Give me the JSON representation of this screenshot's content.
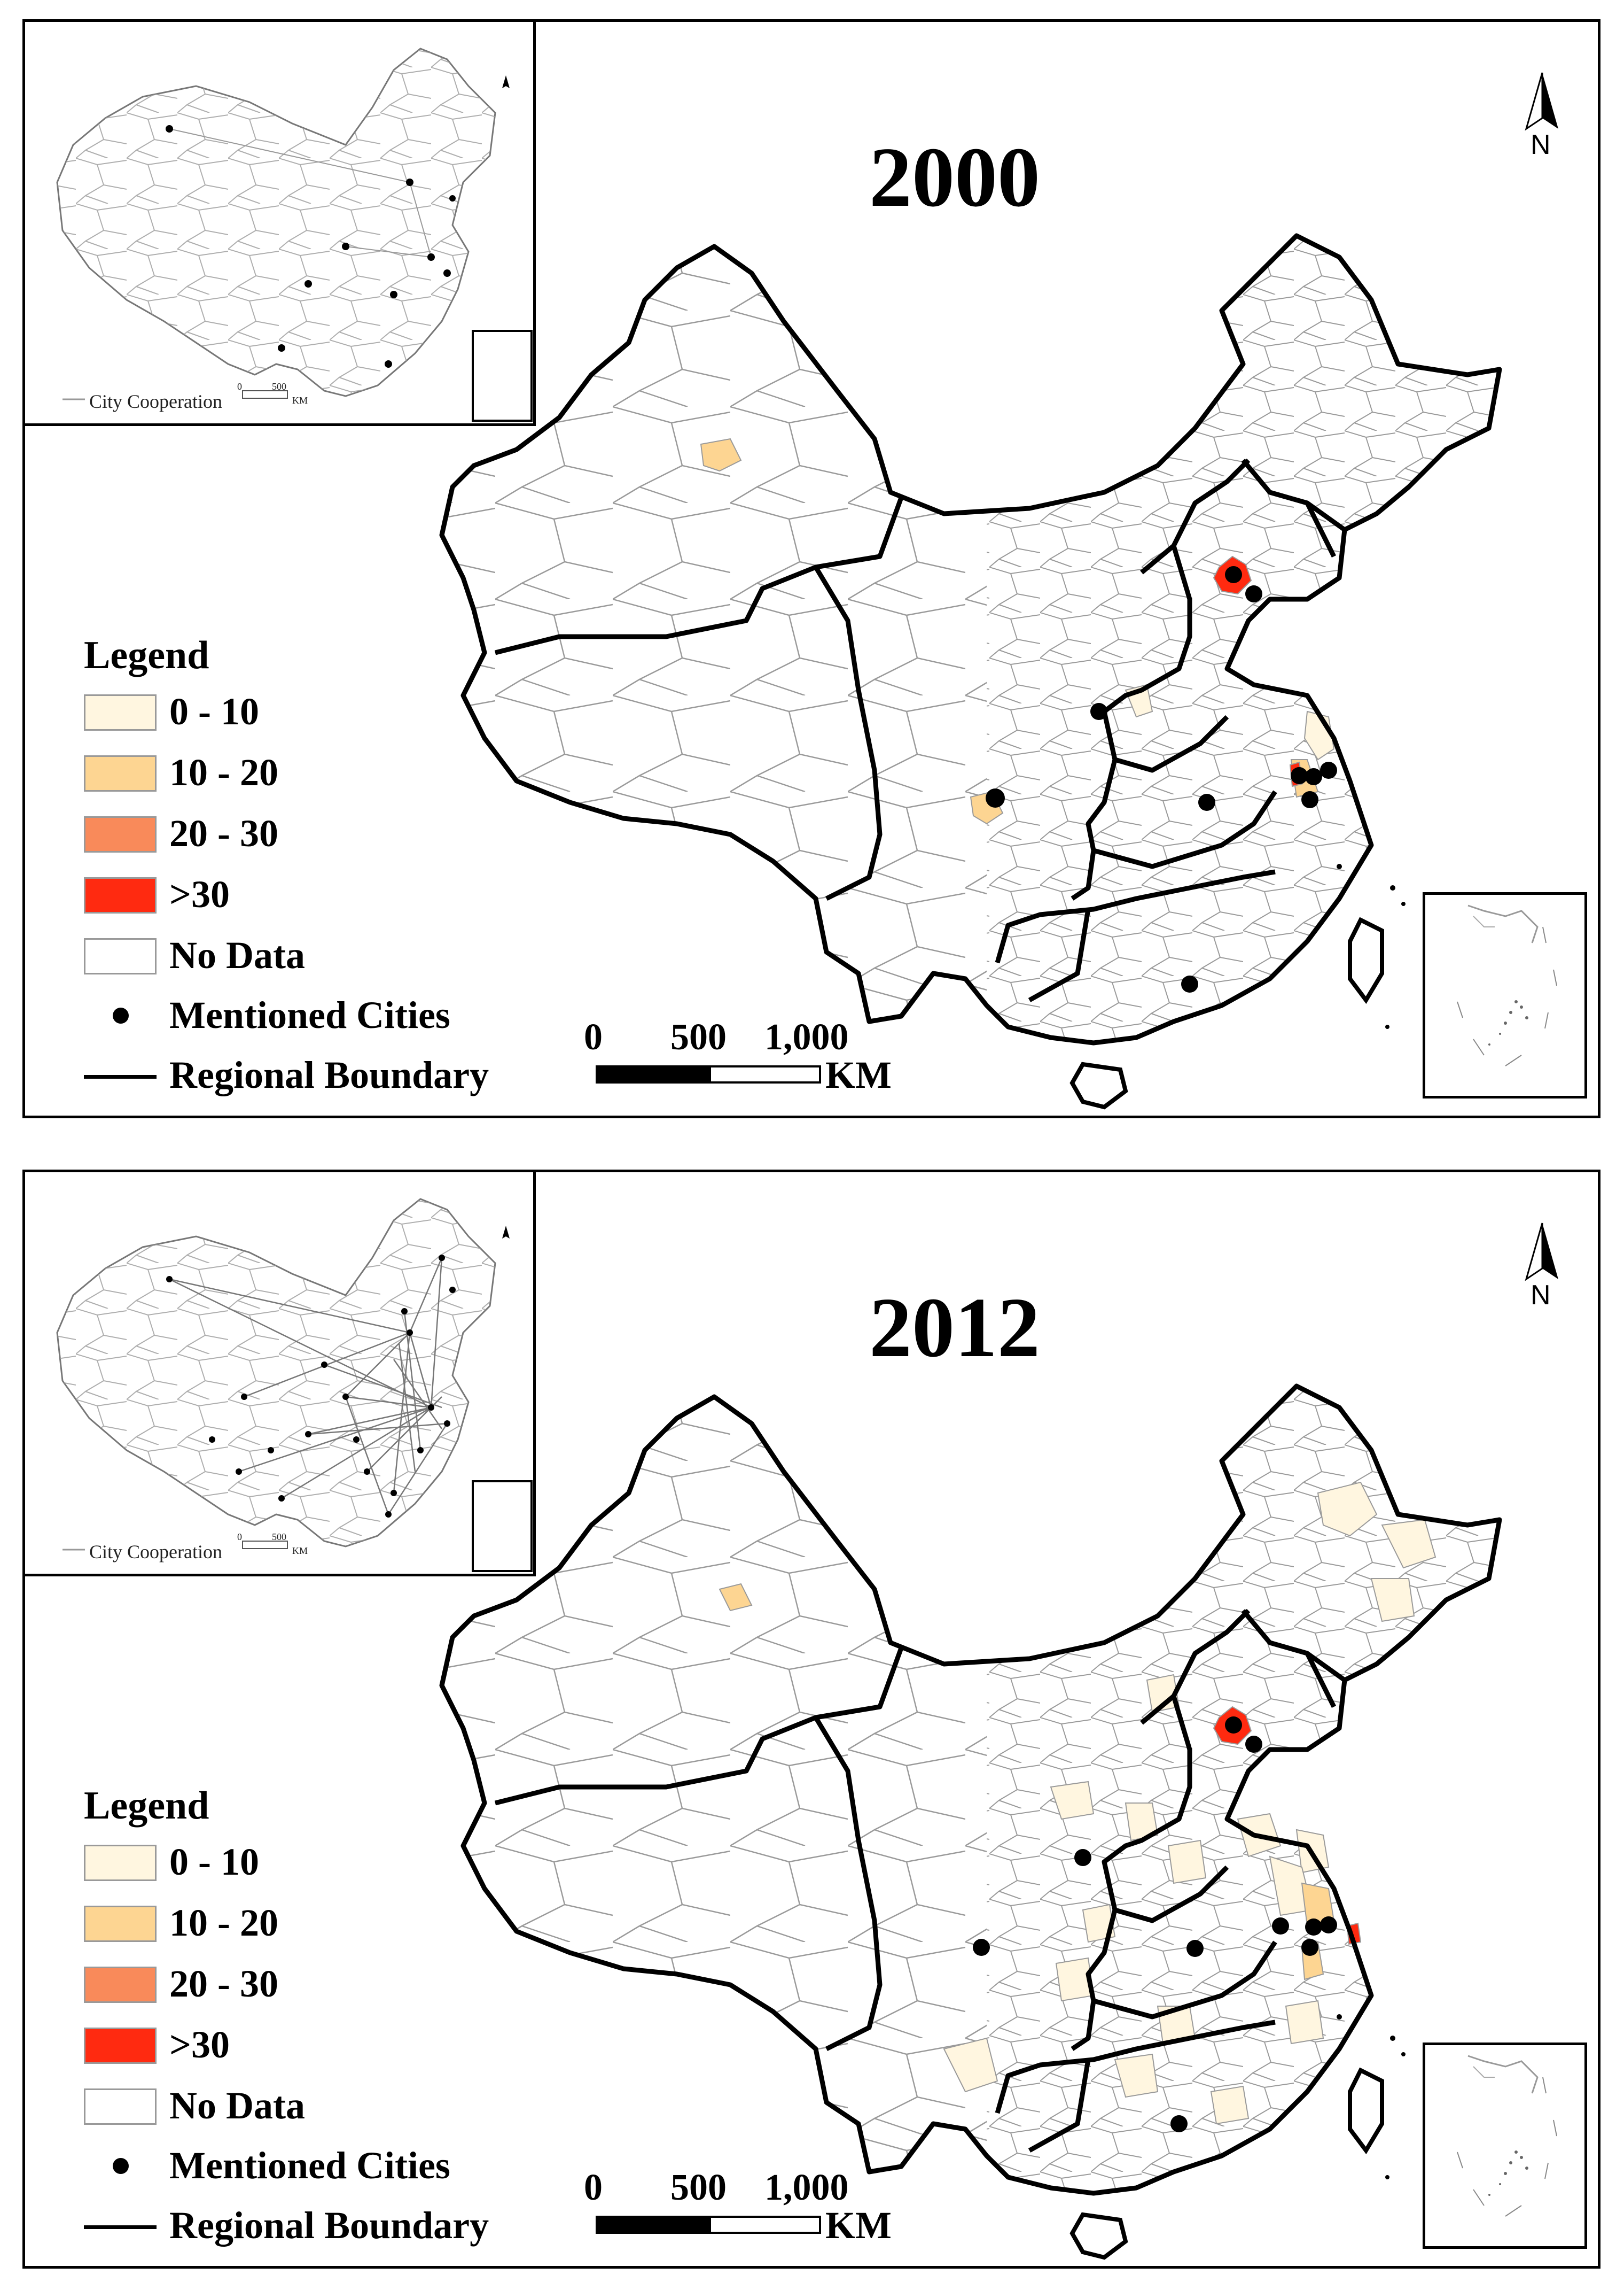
{
  "colors": {
    "class_0_10": "#fff6e0",
    "class_10_20": "#fdd592",
    "class_20_30": "#f98a5a",
    "class_gt30": "#ff2a10",
    "no_data": "#ffffff",
    "boundary": "#000000",
    "admin_line": "#9a9a9a",
    "city": "#000000"
  },
  "legend": {
    "title": "Legend",
    "items": [
      {
        "label": "0 - 10",
        "class": "class_0_10"
      },
      {
        "label": "10 - 20",
        "class": "class_10_20"
      },
      {
        "label": "20 - 30",
        "class": "class_20_30"
      },
      {
        "label": ">30",
        "class": "class_gt30"
      },
      {
        "label": "No Data",
        "class": "no_data"
      }
    ],
    "cities_label": "Mentioned Cities",
    "boundary_label": "Regional Boundary"
  },
  "scale_bar": {
    "ticks": [
      "0",
      "500",
      "1,000"
    ],
    "unit": "KM"
  },
  "north_label": "N",
  "inset": {
    "legend_label": "City Cooperation",
    "scale_zero": "0",
    "scale_max": "500",
    "scale_unit": "KM"
  },
  "maps": [
    {
      "year": "2000"
    },
    {
      "year": "2012"
    }
  ]
}
